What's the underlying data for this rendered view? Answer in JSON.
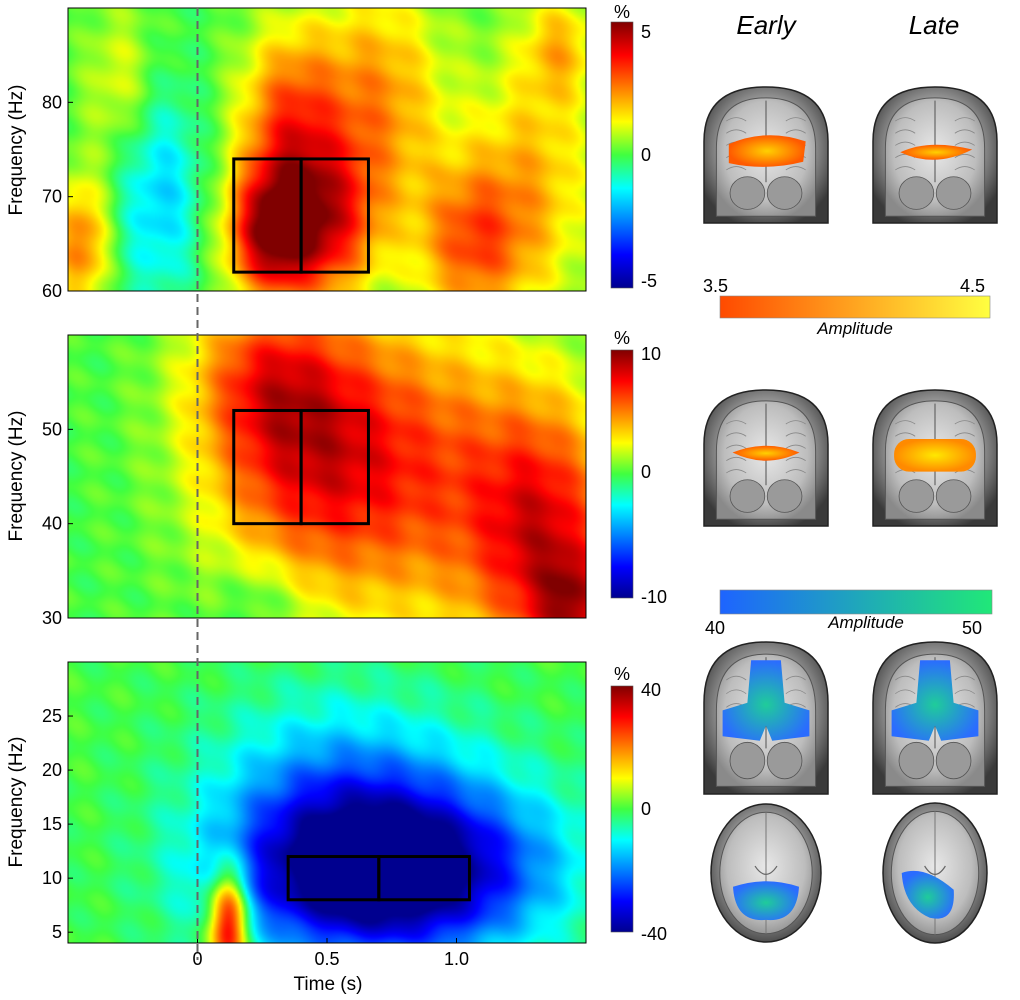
{
  "chart_data": [
    {
      "type": "heatmap",
      "panel": "gamma-high",
      "xlim": [
        -0.5,
        1.5
      ],
      "ylim": [
        60,
        90
      ],
      "yticks": [
        "60",
        "70",
        "80"
      ],
      "ylabel": "Frequency (Hz)",
      "clim": [
        -5,
        5
      ],
      "cbar_ticks": [
        "5",
        "0",
        "-5"
      ],
      "cbar_unit": "%",
      "event_line_x": 0,
      "windows": [
        {
          "x": [
            0.14,
            0.4
          ],
          "y": [
            62,
            74
          ]
        },
        {
          "x": [
            0.4,
            0.66
          ],
          "y": [
            62,
            74
          ]
        }
      ],
      "blobs": [
        {
          "t": 0.28,
          "f": 66,
          "st": 0.12,
          "sf": 5,
          "a": 4.3
        },
        {
          "t": 0.5,
          "f": 67,
          "st": 0.14,
          "sf": 6,
          "a": 3.2
        },
        {
          "t": 0.35,
          "f": 78,
          "st": 0.14,
          "sf": 7,
          "a": 2.8
        },
        {
          "t": 0.7,
          "f": 80,
          "st": 0.18,
          "sf": 9,
          "a": 2.3
        },
        {
          "t": 1.05,
          "f": 65,
          "st": 0.15,
          "sf": 6,
          "a": 2.6
        },
        {
          "t": 1.3,
          "f": 72,
          "st": 0.18,
          "sf": 10,
          "a": 1.8
        },
        {
          "t": -0.45,
          "f": 65,
          "st": 0.08,
          "sf": 5,
          "a": 2.6
        },
        {
          "t": -0.15,
          "f": 70,
          "st": 0.12,
          "sf": 8,
          "a": -1.7
        },
        {
          "t": -0.3,
          "f": 82,
          "st": 0.1,
          "sf": 6,
          "a": 1.2
        },
        {
          "t": 1.4,
          "f": 86,
          "st": 0.1,
          "sf": 4,
          "a": 1.5
        }
      ]
    },
    {
      "type": "heatmap",
      "panel": "gamma-low",
      "xlim": [
        -0.5,
        1.5
      ],
      "ylim": [
        30,
        60
      ],
      "yticks": [
        "30",
        "40",
        "50"
      ],
      "ylabel": "Frequency (Hz)",
      "clim": [
        -10,
        10
      ],
      "cbar_ticks": [
        "10",
        "0",
        "-10"
      ],
      "cbar_unit": "%",
      "event_line_x": 0,
      "windows": [
        {
          "x": [
            0.14,
            0.4
          ],
          "y": [
            40,
            52
          ]
        },
        {
          "x": [
            0.4,
            0.66
          ],
          "y": [
            40,
            52
          ]
        }
      ],
      "blobs": [
        {
          "t": 0.4,
          "f": 48,
          "st": 0.28,
          "sf": 10,
          "a": 6.2
        },
        {
          "t": 0.9,
          "f": 45,
          "st": 0.35,
          "sf": 12,
          "a": 5.0
        },
        {
          "t": 1.35,
          "f": 38,
          "st": 0.2,
          "sf": 10,
          "a": 6.5
        },
        {
          "t": 1.45,
          "f": 31,
          "st": 0.1,
          "sf": 4,
          "a": 4.5
        },
        {
          "t": 0.25,
          "f": 56,
          "st": 0.2,
          "sf": 6,
          "a": 3.5
        },
        {
          "t": 0.25,
          "f": 32,
          "st": 0.12,
          "sf": 3,
          "a": -1.5
        }
      ]
    },
    {
      "type": "heatmap",
      "panel": "alpha-beta",
      "xlim": [
        -0.5,
        1.5
      ],
      "ylim": [
        4,
        30
      ],
      "xticks": [
        "0",
        "0.5",
        "1.0"
      ],
      "yticks": [
        "5",
        "10",
        "15",
        "20",
        "25"
      ],
      "xlabel": "Time (s)",
      "ylabel": "Frequency (Hz)",
      "clim": [
        -40,
        40
      ],
      "cbar_ticks": [
        "40",
        "0",
        "-40"
      ],
      "cbar_unit": "%",
      "event_line_x": 0,
      "windows": [
        {
          "x": [
            0.35,
            0.7
          ],
          "y": [
            8,
            12
          ]
        },
        {
          "x": [
            0.7,
            1.05
          ],
          "y": [
            8,
            12
          ]
        }
      ],
      "blobs": [
        {
          "t": 0.7,
          "f": 10,
          "st": 0.38,
          "sf": 5,
          "a": -36
        },
        {
          "t": 0.55,
          "f": 16,
          "st": 0.35,
          "sf": 7,
          "a": -20
        },
        {
          "t": 0.95,
          "f": 12,
          "st": 0.4,
          "sf": 6,
          "a": -12
        },
        {
          "t": 0.12,
          "f": 6,
          "st": 0.05,
          "sf": 3.5,
          "a": 42
        }
      ]
    }
  ],
  "headers": {
    "early": "Early",
    "late": "Late"
  },
  "amplitude_scales": [
    {
      "min": "3.5",
      "max": "4.5",
      "label": "Amplitude",
      "colors": [
        "#ff4a00",
        "#ffff40"
      ]
    },
    {
      "min": "40",
      "max": "50",
      "label": "Amplitude",
      "colors": [
        "#1e64ff",
        "#20e878"
      ]
    }
  ],
  "colors": {
    "window": "#000000",
    "event_line": "#666666"
  }
}
